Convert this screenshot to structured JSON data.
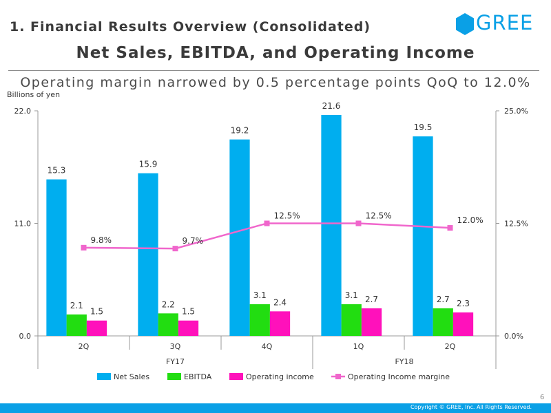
{
  "header": {
    "section_title": "1. Financial Results Overview (Consolidated)",
    "logo_text": "GREE",
    "main_title": "Net Sales, EBITDA, and Operating Income",
    "subtitle": "Operating margin narrowed by 0.5 percentage points QoQ to 12.0%",
    "unit_label": "Billions of yen"
  },
  "footer": {
    "page_number": "6",
    "copyright": "Copyright © GREE, Inc. All Rights Reserved."
  },
  "colors": {
    "net_sales": "#00aeef",
    "ebitda": "#22dd11",
    "operating_income": "#ff11bb",
    "margin_line": "#f066cc",
    "brand": "#0aa0e6"
  },
  "chart_data": {
    "type": "bar",
    "categories": [
      "2Q",
      "3Q",
      "4Q",
      "1Q",
      "2Q"
    ],
    "groups": [
      {
        "label": "FY17",
        "span": 3
      },
      {
        "label": "FY18",
        "span": 2
      }
    ],
    "series": [
      {
        "name": "Net Sales",
        "values": [
          15.3,
          15.9,
          19.2,
          21.6,
          19.5
        ],
        "labels": [
          "15.3",
          "15.9",
          "19.2",
          "21.6",
          "19.5"
        ]
      },
      {
        "name": "EBITDA",
        "values": [
          2.1,
          2.2,
          3.1,
          3.1,
          2.7
        ],
        "labels": [
          "2.1",
          "2.2",
          "3.1",
          "3.1",
          "2.7"
        ]
      },
      {
        "name": "Operating income",
        "values": [
          1.5,
          1.5,
          2.4,
          2.7,
          2.3
        ],
        "labels": [
          "1.5",
          "1.5",
          "2.4",
          "2.7",
          "2.3"
        ]
      }
    ],
    "line_series": {
      "name": "Operating Income margine",
      "axis": "right",
      "values": [
        9.8,
        9.7,
        12.5,
        12.5,
        12.0
      ],
      "labels": [
        "9.8%",
        "9.7%",
        "12.5%",
        "12.5%",
        "12.0%"
      ]
    },
    "ylim": [
      0,
      22
    ],
    "y_ticks": [
      "0.0",
      "11.0",
      "22.0"
    ],
    "y2lim": [
      0,
      25
    ],
    "y2_ticks": [
      "0.0%",
      "12.5%",
      "25.0%"
    ],
    "legend_position": "bottom"
  }
}
